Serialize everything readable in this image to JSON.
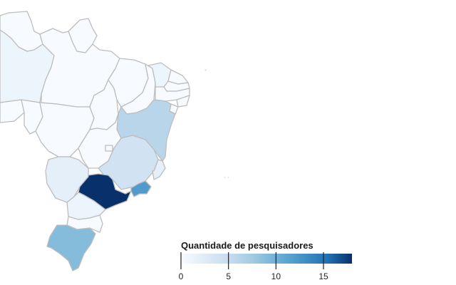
{
  "map": {
    "legend": {
      "title": "Quantidade de pesquisadores",
      "min": 0,
      "max": 18,
      "ticks": [
        {
          "value": 0,
          "label": "0"
        },
        {
          "value": 5,
          "label": "5"
        },
        {
          "value": 10,
          "label": "10"
        },
        {
          "value": 15,
          "label": "15"
        }
      ],
      "color_scale": [
        "#f7fbff",
        "#deebf7",
        "#c6dbef",
        "#9ecae1",
        "#6baed6",
        "#4292c6",
        "#2171b5",
        "#08306b"
      ]
    },
    "regions": [
      {
        "id": "roraima",
        "value": 0
      },
      {
        "id": "amapa",
        "value": 0
      },
      {
        "id": "amazonas",
        "value": 1
      },
      {
        "id": "para",
        "value": 0
      },
      {
        "id": "acre",
        "value": 0
      },
      {
        "id": "rondonia",
        "value": 0
      },
      {
        "id": "mato-grosso",
        "value": 0
      },
      {
        "id": "tocantins",
        "value": 0
      },
      {
        "id": "maranhao",
        "value": 0
      },
      {
        "id": "piaui",
        "value": 0
      },
      {
        "id": "ceara",
        "value": 1
      },
      {
        "id": "rio-grande-do-norte",
        "value": 0
      },
      {
        "id": "paraiba",
        "value": 0
      },
      {
        "id": "pernambuco",
        "value": 0
      },
      {
        "id": "alagoas",
        "value": 0
      },
      {
        "id": "sergipe",
        "value": 0
      },
      {
        "id": "bahia",
        "value": 6
      },
      {
        "id": "goias",
        "value": 0
      },
      {
        "id": "distrito-federal",
        "value": 0
      },
      {
        "id": "minas-gerais",
        "value": 4
      },
      {
        "id": "espirito-santo",
        "value": 2
      },
      {
        "id": "mato-grosso-do-sul",
        "value": 2
      },
      {
        "id": "sao-paulo",
        "value": 18
      },
      {
        "id": "rio-de-janeiro",
        "value": 12
      },
      {
        "id": "parana",
        "value": 1
      },
      {
        "id": "santa-catarina",
        "value": 0
      },
      {
        "id": "rio-grande-do-sul",
        "value": 9
      }
    ]
  }
}
